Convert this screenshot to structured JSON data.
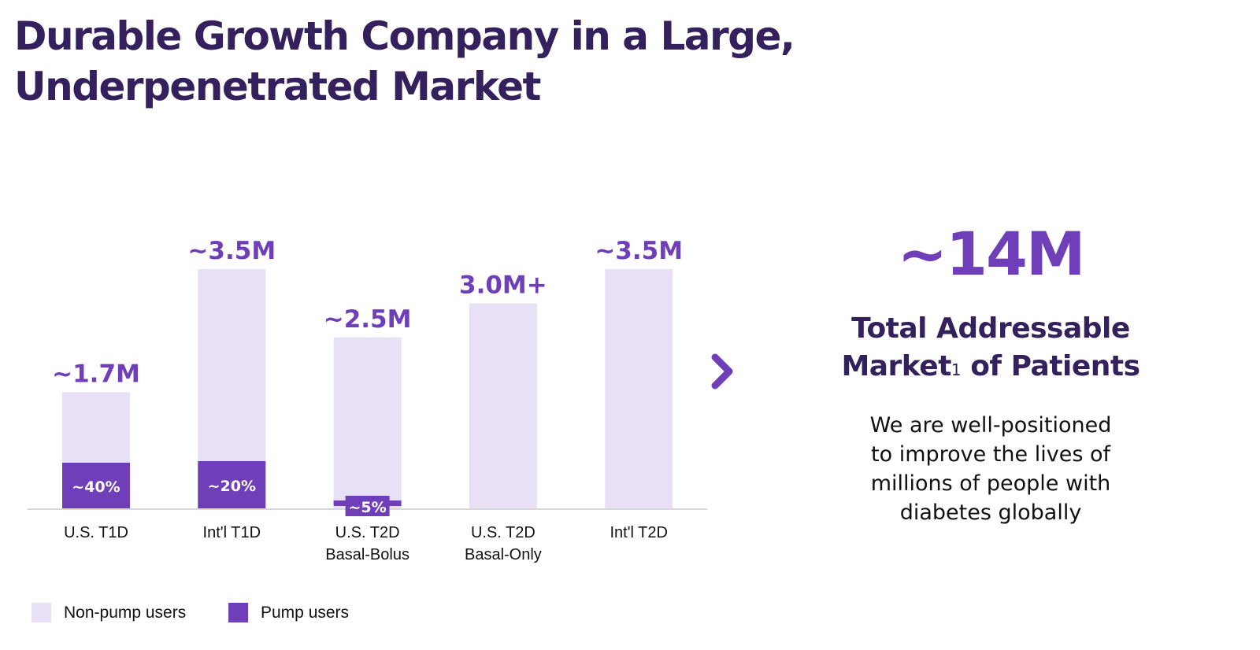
{
  "header": {
    "title_line1": "Durable Growth Company in a Large,",
    "title_line2": "Underpenetrated Market"
  },
  "colors": {
    "non_pump": "#e8e0f4",
    "pump": "#6e3fb8",
    "title": "#33205c",
    "axis": "#d8d8d8"
  },
  "chart_data": {
    "type": "bar",
    "stacked": true,
    "title": "",
    "xlabel": "",
    "ylabel": "",
    "unit": "M patients",
    "ylim": [
      0,
      3.8
    ],
    "grid": false,
    "legend_position": "bottom-left",
    "categories": [
      [
        "U.S. T1D"
      ],
      [
        "Int'l T1D"
      ],
      [
        "U.S. T2D",
        "Basal-Bolus"
      ],
      [
        "U.S. T2D",
        "Basal-Only"
      ],
      [
        "Int'l T2D"
      ]
    ],
    "totals": [
      1.7,
      3.5,
      2.5,
      3.0,
      3.5
    ],
    "total_labels": [
      "~1.7M",
      "~3.5M",
      "~2.5M",
      "3.0M+",
      "~3.5M"
    ],
    "pump_share_pct": [
      40,
      20,
      5,
      0,
      0
    ],
    "pump_share_labels": [
      "~40%",
      "~20%",
      "~5%",
      "",
      ""
    ],
    "series": [
      {
        "name": "Non-pump users",
        "color": "#e8e0f4"
      },
      {
        "name": "Pump users",
        "color": "#6e3fb8"
      }
    ]
  },
  "arrow_icon": "chevron-right-icon",
  "tam": {
    "value": "~14M",
    "line1": "Total Addressable",
    "line2_main": "Market",
    "line2_sup": "1",
    "line2_end": " of Patients",
    "description_lines": [
      "We are well-positioned",
      "to improve the lives of",
      "millions of people with",
      "diabetes globally"
    ]
  }
}
